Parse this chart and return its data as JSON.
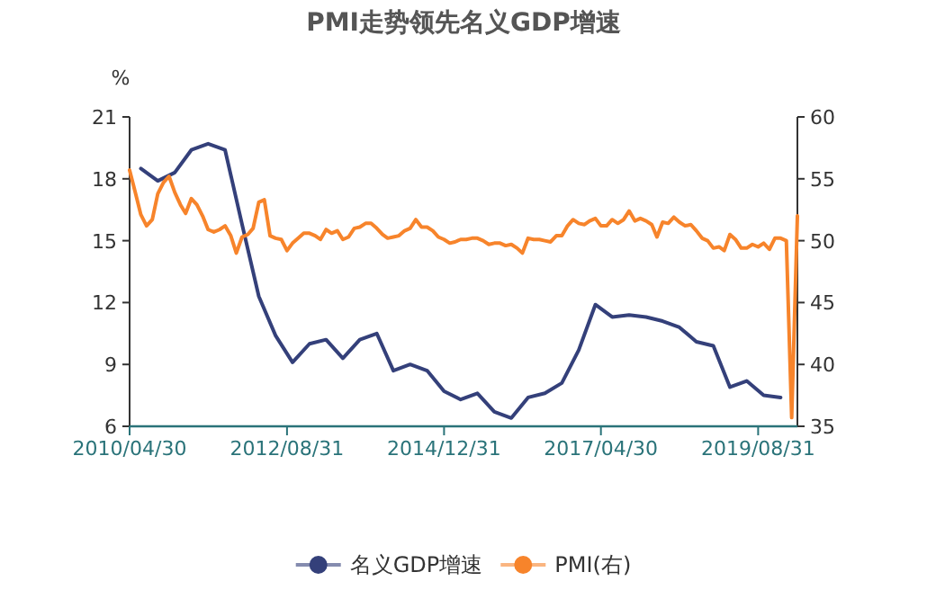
{
  "chart_data": {
    "type": "line",
    "title": "PMI走势领先名义GDP增速",
    "ylabel": "%",
    "xlim": [
      "2010-04-30",
      "2020-03-31"
    ],
    "xticks": [
      {
        "value": "2010-04-30",
        "label": "2010/04/30"
      },
      {
        "value": "2012-08-31",
        "label": "2012/08/31"
      },
      {
        "value": "2014-12-31",
        "label": "2014/12/31"
      },
      {
        "value": "2017-04-30",
        "label": "2017/04/30"
      },
      {
        "value": "2019-08-31",
        "label": "2019/08/31"
      }
    ],
    "ylim": [
      6,
      21
    ],
    "yticks": [
      6,
      9,
      12,
      15,
      18,
      21
    ],
    "y2lim": [
      35,
      60
    ],
    "y2ticks": [
      35,
      40,
      45,
      50,
      55,
      60
    ],
    "legend": "bottom",
    "grid": false,
    "marker": "none",
    "line_style": "solid",
    "series": [
      {
        "name": "名义GDP增速",
        "color": "#34407a",
        "x": [
          "2010-06-30",
          "2010-09-30",
          "2010-12-31",
          "2011-03-31",
          "2011-06-30",
          "2011-09-30",
          "2011-12-31",
          "2012-03-31",
          "2012-06-30",
          "2012-09-30",
          "2012-12-31",
          "2013-03-31",
          "2013-06-30",
          "2013-09-30",
          "2013-12-31",
          "2014-03-31",
          "2014-06-30",
          "2014-09-30",
          "2014-12-31",
          "2015-03-31",
          "2015-06-30",
          "2015-09-30",
          "2015-12-31",
          "2016-03-31",
          "2016-06-30",
          "2016-09-30",
          "2016-12-31",
          "2017-03-31",
          "2017-06-30",
          "2017-09-30",
          "2017-12-31",
          "2018-03-31",
          "2018-06-30",
          "2018-09-30",
          "2018-12-31",
          "2019-03-31",
          "2019-06-30",
          "2019-09-30",
          "2019-12-31"
        ],
        "values": [
          18.5,
          17.9,
          18.3,
          19.4,
          19.7,
          19.4,
          15.8,
          12.3,
          10.4,
          9.1,
          10.0,
          10.2,
          9.3,
          10.2,
          10.5,
          8.7,
          9.0,
          8.7,
          7.7,
          7.3,
          7.6,
          6.7,
          6.4,
          7.4,
          7.6,
          8.1,
          9.7,
          11.9,
          11.3,
          11.4,
          11.3,
          11.1,
          10.8,
          10.1,
          9.9,
          7.9,
          8.2,
          7.5,
          7.4
        ]
      },
      {
        "name": "PMI(右)",
        "color": "#f7842b",
        "axis": "y2",
        "x": [
          "2010-04-30",
          "2010-05-31",
          "2010-06-30",
          "2010-07-31",
          "2010-08-31",
          "2010-09-30",
          "2010-10-31",
          "2010-11-30",
          "2010-12-31",
          "2011-01-31",
          "2011-02-28",
          "2011-03-31",
          "2011-04-30",
          "2011-05-31",
          "2011-06-30",
          "2011-07-31",
          "2011-08-31",
          "2011-09-30",
          "2011-10-31",
          "2011-11-30",
          "2011-12-31",
          "2012-01-31",
          "2012-02-29",
          "2012-03-31",
          "2012-04-30",
          "2012-05-31",
          "2012-06-30",
          "2012-07-31",
          "2012-08-31",
          "2012-09-30",
          "2012-10-31",
          "2012-11-30",
          "2012-12-31",
          "2013-01-31",
          "2013-02-28",
          "2013-03-31",
          "2013-04-30",
          "2013-05-31",
          "2013-06-30",
          "2013-07-31",
          "2013-08-31",
          "2013-09-30",
          "2013-10-31",
          "2013-11-30",
          "2013-12-31",
          "2014-01-31",
          "2014-02-28",
          "2014-03-31",
          "2014-04-30",
          "2014-05-31",
          "2014-06-30",
          "2014-07-31",
          "2014-08-31",
          "2014-09-30",
          "2014-10-31",
          "2014-11-30",
          "2014-12-31",
          "2015-01-31",
          "2015-02-28",
          "2015-03-31",
          "2015-04-30",
          "2015-05-31",
          "2015-06-30",
          "2015-07-31",
          "2015-08-31",
          "2015-09-30",
          "2015-10-31",
          "2015-11-30",
          "2015-12-31",
          "2016-01-31",
          "2016-02-29",
          "2016-03-31",
          "2016-04-30",
          "2016-05-31",
          "2016-06-30",
          "2016-07-31",
          "2016-08-31",
          "2016-09-30",
          "2016-10-31",
          "2016-11-30",
          "2016-12-31",
          "2017-01-31",
          "2017-02-28",
          "2017-03-31",
          "2017-04-30",
          "2017-05-31",
          "2017-06-30",
          "2017-07-31",
          "2017-08-31",
          "2017-09-30",
          "2017-10-31",
          "2017-11-30",
          "2017-12-31",
          "2018-01-31",
          "2018-02-28",
          "2018-03-31",
          "2018-04-30",
          "2018-05-31",
          "2018-06-30",
          "2018-07-31",
          "2018-08-31",
          "2018-09-30",
          "2018-10-31",
          "2018-11-30",
          "2018-12-31",
          "2019-01-31",
          "2019-02-28",
          "2019-03-31",
          "2019-04-30",
          "2019-05-31",
          "2019-06-30",
          "2019-07-31",
          "2019-08-31",
          "2019-09-30",
          "2019-10-31",
          "2019-11-30",
          "2019-12-31",
          "2020-01-31",
          "2020-02-29",
          "2020-03-31"
        ],
        "values": [
          55.7,
          53.9,
          52.1,
          51.2,
          51.7,
          53.8,
          54.7,
          55.2,
          53.9,
          52.9,
          52.2,
          53.4,
          52.9,
          52.0,
          50.9,
          50.7,
          50.9,
          51.2,
          50.4,
          49.0,
          50.3,
          50.5,
          51.0,
          53.1,
          53.3,
          50.4,
          50.2,
          50.1,
          49.2,
          49.8,
          50.2,
          50.6,
          50.6,
          50.4,
          50.1,
          50.9,
          50.6,
          50.8,
          50.1,
          50.3,
          51.0,
          51.1,
          51.4,
          51.4,
          51.0,
          50.5,
          50.2,
          50.3,
          50.4,
          50.8,
          51.0,
          51.7,
          51.1,
          51.1,
          50.8,
          50.3,
          50.1,
          49.8,
          49.9,
          50.1,
          50.1,
          50.2,
          50.2,
          50.0,
          49.7,
          49.8,
          49.8,
          49.6,
          49.7,
          49.4,
          49.0,
          50.2,
          50.1,
          50.1,
          50.0,
          49.9,
          50.4,
          50.4,
          51.2,
          51.7,
          51.4,
          51.3,
          51.6,
          51.8,
          51.2,
          51.2,
          51.7,
          51.4,
          51.7,
          52.4,
          51.6,
          51.8,
          51.6,
          51.3,
          50.3,
          51.5,
          51.4,
          51.9,
          51.5,
          51.2,
          51.3,
          50.8,
          50.2,
          50.0,
          49.4,
          49.5,
          49.2,
          50.5,
          50.1,
          49.4,
          49.4,
          49.7,
          49.5,
          49.8,
          49.3,
          50.2,
          50.2,
          50.0,
          35.7,
          52.0
        ]
      }
    ]
  }
}
